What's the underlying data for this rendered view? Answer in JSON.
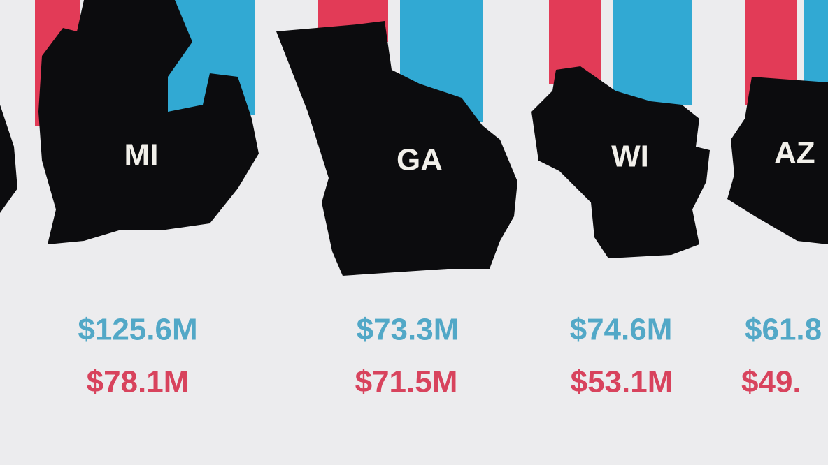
{
  "states": [
    {
      "abbr": "MI",
      "blue_amount": "$125.6M",
      "red_amount": "$78.1M"
    },
    {
      "abbr": "GA",
      "blue_amount": "$73.3M",
      "red_amount": "$71.5M"
    },
    {
      "abbr": "WI",
      "blue_amount": "$74.6M",
      "red_amount": "$53.1M"
    },
    {
      "abbr": "AZ",
      "blue_amount": "$61.8",
      "red_amount": "$49."
    }
  ]
}
